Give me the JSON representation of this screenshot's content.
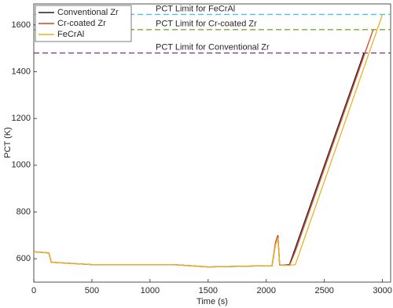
{
  "chart_data": {
    "type": "line",
    "xlabel": "Time (s)",
    "ylabel": "PCT (K)",
    "x": [
      0,
      130,
      150,
      500,
      1200,
      1500,
      2000,
      2050,
      2080,
      2100,
      2115,
      2130,
      2200,
      2250,
      2400,
      2600,
      2840,
      2920,
      3000
    ],
    "series": [
      {
        "name": "Conventional Zr",
        "color": "#222222",
        "values": [
          630,
          625,
          585,
          575,
          575,
          565,
          570,
          570,
          670,
          700,
          575,
          572,
          575,
          646,
          858,
          1141,
          1480,
          null,
          null
        ]
      },
      {
        "name": "Cr-coated Zr",
        "color": "#d9432a",
        "values": [
          630,
          625,
          585,
          575,
          575,
          565,
          570,
          570,
          668,
          698,
          575,
          572,
          572,
          632,
          844,
          1127,
          1467,
          1580,
          null
        ]
      },
      {
        "name": "FeCrAl",
        "color": "#edb120",
        "values": [
          630,
          625,
          585,
          575,
          575,
          565,
          570,
          570,
          660,
          690,
          578,
          572,
          572,
          575,
          789,
          1074,
          1417,
          1531,
          1645
        ]
      }
    ],
    "reference_lines": [
      {
        "label": "PCT Limit for FeCrAl",
        "value": 1645,
        "color": "#4dbeee"
      },
      {
        "label": "PCT Limit for Cr-coated Zr",
        "value": 1580,
        "color": "#77ac30"
      },
      {
        "label": "PCT Limit for Conventional Zr",
        "value": 1480,
        "color": "#7e2f8e"
      }
    ],
    "xlim": [
      0,
      3070
    ],
    "ylim": [
      500,
      1690
    ],
    "xticks": [
      0,
      500,
      1000,
      1500,
      2000,
      2500,
      3000
    ],
    "yticks": [
      600,
      800,
      1000,
      1200,
      1400,
      1600
    ],
    "legend": "upper-left"
  }
}
